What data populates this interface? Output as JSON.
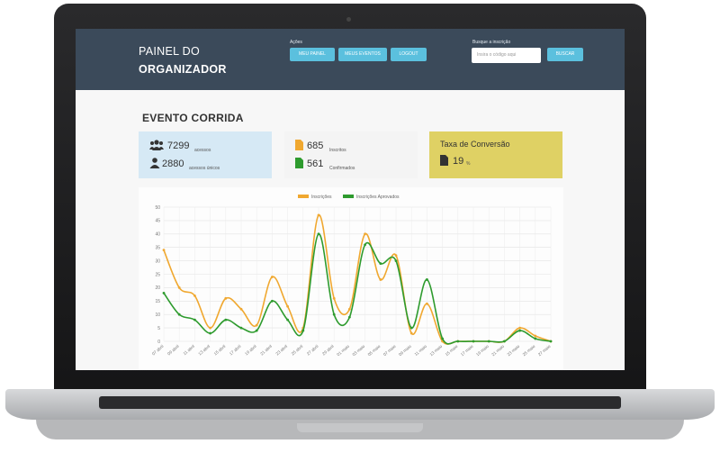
{
  "header": {
    "brand_line1": "PAINEL DO",
    "brand_line2": "ORGANIZADOR",
    "actions_label": "Ações",
    "buttons": [
      "MEU PAINEL",
      "MEUS EVENTOS",
      "LOGOUT"
    ],
    "search_label": "Busque a inscrição",
    "search_placeholder": "Insira o código aqui",
    "search_button": "BUSCAR"
  },
  "event": {
    "title": "EVENTO CORRIDA"
  },
  "stats": {
    "acessos_value": "7299",
    "acessos_label": "acessos",
    "unicos_value": "2880",
    "unicos_label": "acessos únicos",
    "inscritos_value": "685",
    "inscritos_label": "Inscritos",
    "confirmados_value": "561",
    "confirmados_label": "Confirmados",
    "conversao_label": "Taxa de Conversão",
    "conversao_value": "19",
    "conversao_unit": "%"
  },
  "colors": {
    "header_bg": "#3b4a5a",
    "button": "#5bc0de",
    "series1": "#f0a830",
    "series2": "#2e9b2e",
    "card_access": "#d6e9f5",
    "card_conversion": "#dfd164"
  },
  "chart_data": {
    "type": "line",
    "x": [
      "07 abril",
      "09 abril",
      "11 abril",
      "13 abril",
      "15 abril",
      "17 abril",
      "19 abril",
      "21 abril",
      "23 abril",
      "25 abril",
      "27 abril",
      "29 abril",
      "01 maio",
      "03 maio",
      "05 maio",
      "07 maio",
      "09 maio",
      "11 maio",
      "13 maio",
      "15 maio",
      "17 maio",
      "19 maio",
      "21 maio",
      "23 maio",
      "25 maio",
      "27 maio"
    ],
    "ylim": [
      0,
      50
    ],
    "yticks": [
      0,
      5,
      10,
      15,
      20,
      25,
      30,
      35,
      40,
      45,
      50
    ],
    "legend_position": "top",
    "grid": true,
    "series": [
      {
        "name": "Inscrições",
        "values": [
          34,
          20,
          17,
          5,
          16,
          12,
          6,
          24,
          13,
          5,
          47,
          16,
          12,
          40,
          23,
          32,
          3,
          14,
          0,
          0,
          0,
          0,
          0,
          5,
          2,
          0
        ]
      },
      {
        "name": "Inscrições Aprovados",
        "values": [
          18,
          10,
          8,
          3,
          8,
          5,
          4,
          15,
          8,
          4,
          40,
          10,
          9,
          36,
          29,
          30,
          5,
          23,
          1,
          0,
          0,
          0,
          0,
          4,
          1,
          0
        ]
      }
    ]
  }
}
